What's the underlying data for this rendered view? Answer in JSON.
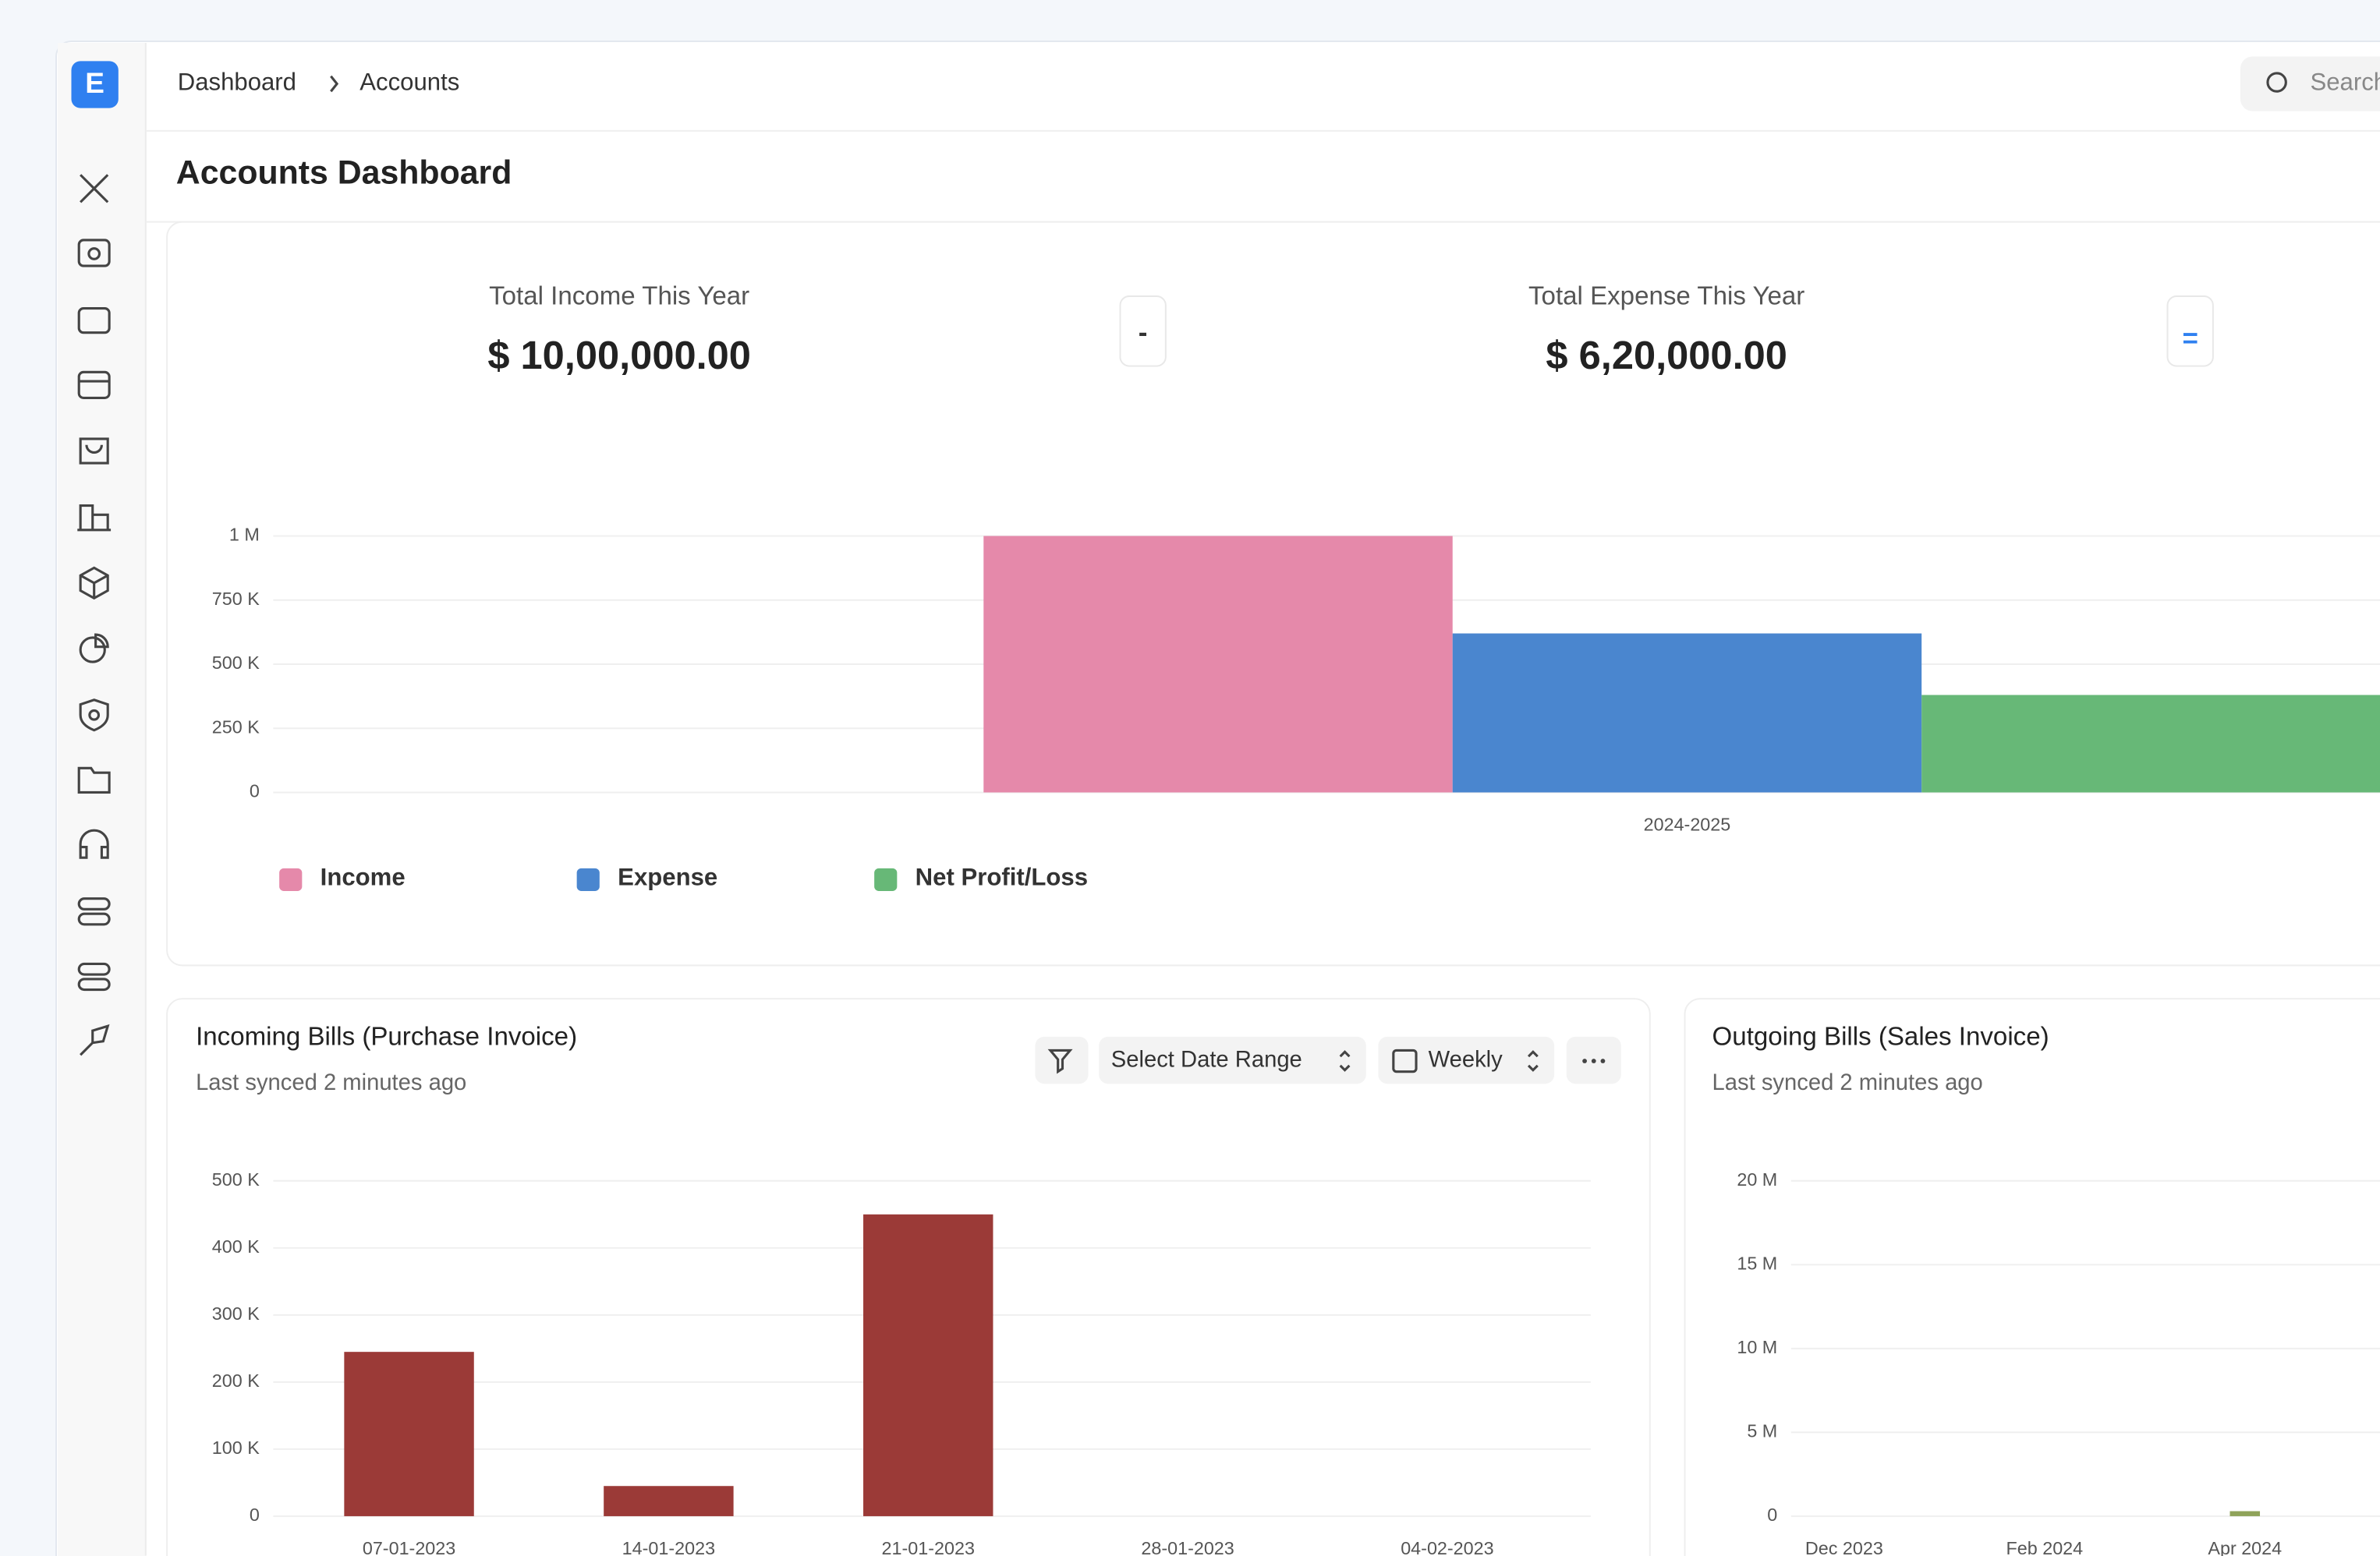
{
  "logo": "E",
  "breadcrumb": [
    "Dashboard",
    "Accounts"
  ],
  "search": "Search",
  "page_title": "Accounts Dashboard",
  "cards": [
    {
      "label": "Total Income This Year",
      "value": "$ 10,00,000.00"
    },
    {
      "label": "Total Expense This Year",
      "value": "$ 6,20,000.00"
    }
  ],
  "operators": [
    "-",
    "="
  ],
  "controls": {
    "date_range": "Select Date Range",
    "interval": "Weekly"
  },
  "chart_data": [
    {
      "type": "bar",
      "categories": [
        "2024-2025"
      ],
      "series": [
        {
          "name": "Income",
          "color": "#e589aa",
          "values": [
            1000000
          ]
        },
        {
          "name": "Expense",
          "color": "#4a86cf",
          "values": [
            620000
          ]
        },
        {
          "name": "Net Profit/Loss",
          "color": "#67b877",
          "values": [
            380000
          ]
        }
      ],
      "ylim": [
        0,
        1000000
      ],
      "yticks": [
        0,
        {
          "value": 250000,
          "label": "250 K"
        },
        {
          "value": 500000,
          "label": "500 K"
        },
        {
          "value": 750000,
          "label": "750 K"
        },
        {
          "value": 1000000,
          "label": "1 M"
        }
      ],
      "grid": true,
      "legend": "bottom-left"
    },
    {
      "type": "bar",
      "title": "Incoming Bills (Purchase Invoice)",
      "subtitle": "Last synced 2 minutes ago",
      "categories": [
        "07-01-2023",
        "14-01-2023",
        "21-01-2023",
        "28-01-2023",
        "04-02-2023"
      ],
      "values": [
        245000,
        45000,
        450000,
        0,
        0
      ],
      "color": "#9b3a37",
      "ylim": [
        0,
        500000
      ],
      "yticks": [
        0,
        {
          "value": 100000,
          "label": "100 K"
        },
        {
          "value": 200000,
          "label": "200 K"
        },
        {
          "value": 300000,
          "label": "300 K"
        },
        {
          "value": 400000,
          "label": "400 K"
        },
        {
          "value": 500000,
          "label": "500 K"
        }
      ],
      "grid": true
    },
    {
      "type": "bar",
      "title": "Outgoing Bills (Sales Invoice)",
      "subtitle": "Last synced 2 minutes ago",
      "categories": [
        "Dec 2023",
        null,
        "Feb 2024",
        null,
        "Apr 2024"
      ],
      "values": [
        0,
        0,
        0,
        0,
        300000
      ],
      "color": "#8fa35a",
      "ylim": [
        0,
        20000000
      ],
      "yticks": [
        0,
        {
          "value": 5000000,
          "label": "5 M"
        },
        {
          "value": 10000000,
          "label": "10 M"
        },
        {
          "value": 15000000,
          "label": "15 M"
        },
        {
          "value": 20000000,
          "label": "20 M"
        }
      ],
      "grid": true
    }
  ]
}
